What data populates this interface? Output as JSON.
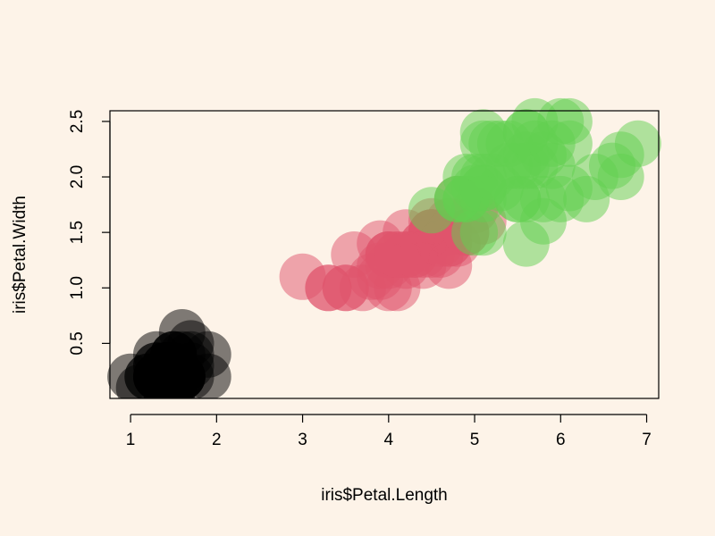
{
  "chart_data": {
    "type": "scatter",
    "title": "",
    "xlabel": "iris$Petal.Length",
    "ylabel": "iris$Petal.Width",
    "xlim": [
      0.76,
      7.14
    ],
    "ylim": [
      0.004,
      2.596
    ],
    "xticks": [
      1,
      2,
      3,
      4,
      5,
      6,
      7
    ],
    "yticks": [
      0.5,
      1.0,
      1.5,
      2.0,
      2.5
    ],
    "ytick_labels": [
      "0.5",
      "1.0",
      "1.5",
      "2.0",
      "2.5"
    ],
    "grid": false,
    "legend": "none",
    "background": "#fdf3e8",
    "series": [
      {
        "color": "#000000",
        "opacity": 0.5,
        "x": [
          1.4,
          1.4,
          1.3,
          1.5,
          1.4,
          1.7,
          1.4,
          1.5,
          1.4,
          1.5,
          1.5,
          1.6,
          1.4,
          1.1,
          1.2,
          1.5,
          1.3,
          1.4,
          1.7,
          1.5,
          1.7,
          1.5,
          1.0,
          1.7,
          1.9,
          1.6,
          1.6,
          1.5,
          1.4,
          1.6,
          1.6,
          1.5,
          1.5,
          1.4,
          1.5,
          1.2,
          1.3,
          1.4,
          1.3,
          1.5,
          1.3,
          1.3,
          1.3,
          1.6,
          1.9,
          1.4,
          1.6,
          1.4,
          1.5,
          1.4
        ],
        "y": [
          0.2,
          0.2,
          0.2,
          0.2,
          0.2,
          0.4,
          0.3,
          0.2,
          0.2,
          0.1,
          0.2,
          0.2,
          0.1,
          0.1,
          0.2,
          0.4,
          0.4,
          0.3,
          0.3,
          0.3,
          0.2,
          0.4,
          0.2,
          0.5,
          0.2,
          0.2,
          0.4,
          0.2,
          0.2,
          0.2,
          0.2,
          0.4,
          0.1,
          0.2,
          0.2,
          0.2,
          0.2,
          0.1,
          0.2,
          0.2,
          0.3,
          0.3,
          0.2,
          0.6,
          0.4,
          0.3,
          0.2,
          0.2,
          0.2,
          0.2
        ]
      },
      {
        "color": "#df536b",
        "opacity": 0.5,
        "x": [
          4.7,
          4.5,
          4.9,
          4.0,
          4.6,
          4.5,
          4.7,
          3.3,
          4.6,
          3.9,
          3.5,
          4.2,
          4.0,
          4.7,
          3.6,
          4.4,
          4.5,
          4.1,
          4.5,
          3.9,
          4.8,
          4.0,
          4.9,
          4.7,
          4.3,
          4.4,
          4.8,
          5.0,
          4.5,
          3.5,
          3.8,
          3.7,
          3.9,
          5.1,
          4.5,
          4.5,
          4.7,
          4.4,
          4.1,
          4.0,
          4.4,
          4.6,
          4.0,
          3.3,
          4.2,
          4.2,
          4.2,
          4.3,
          3.0,
          4.1
        ],
        "y": [
          1.4,
          1.5,
          1.5,
          1.3,
          1.5,
          1.3,
          1.6,
          1.0,
          1.3,
          1.4,
          1.0,
          1.5,
          1.0,
          1.4,
          1.3,
          1.4,
          1.5,
          1.0,
          1.5,
          1.1,
          1.8,
          1.3,
          1.5,
          1.2,
          1.3,
          1.4,
          1.4,
          1.7,
          1.5,
          1.0,
          1.1,
          1.0,
          1.2,
          1.6,
          1.5,
          1.6,
          1.5,
          1.3,
          1.3,
          1.3,
          1.2,
          1.4,
          1.2,
          1.0,
          1.3,
          1.2,
          1.3,
          1.3,
          1.1,
          1.3
        ]
      },
      {
        "color": "#61d04f",
        "opacity": 0.5,
        "x": [
          6.0,
          5.1,
          5.9,
          5.6,
          5.8,
          6.6,
          4.5,
          6.3,
          5.8,
          6.1,
          5.1,
          5.3,
          5.5,
          5.0,
          5.1,
          5.3,
          5.5,
          6.7,
          6.9,
          5.0,
          5.7,
          4.9,
          6.7,
          4.9,
          5.7,
          6.0,
          4.8,
          4.9,
          5.6,
          5.8,
          6.1,
          6.4,
          5.6,
          5.1,
          5.6,
          6.1,
          5.6,
          5.5,
          4.8,
          5.4,
          5.6,
          5.1,
          5.1,
          5.9,
          5.7,
          5.2,
          5.0,
          5.2,
          5.4,
          5.1
        ],
        "y": [
          2.5,
          1.9,
          2.1,
          1.8,
          2.2,
          2.1,
          1.7,
          1.8,
          1.8,
          2.5,
          2.0,
          1.9,
          2.1,
          2.0,
          2.4,
          2.3,
          1.8,
          2.2,
          2.3,
          1.5,
          2.3,
          2.0,
          2.0,
          1.8,
          2.1,
          1.8,
          1.8,
          1.8,
          2.1,
          1.6,
          1.9,
          2.0,
          2.2,
          1.5,
          1.4,
          2.3,
          2.4,
          1.8,
          1.8,
          2.1,
          2.4,
          2.3,
          1.9,
          2.3,
          2.5,
          2.3,
          1.9,
          2.0,
          2.3,
          1.8
        ]
      }
    ]
  }
}
